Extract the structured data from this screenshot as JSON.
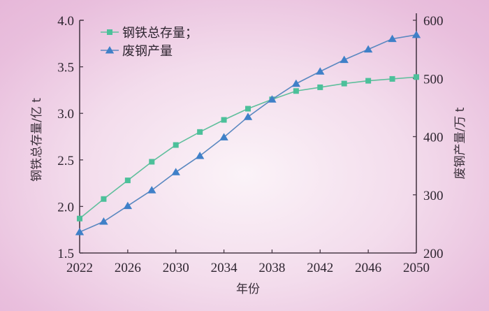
{
  "chart_data": {
    "type": "line",
    "title": "",
    "xlabel": "年份",
    "ylabel": "钢铁总存量/亿 t",
    "ylabel_right": "废钢产量/万 t",
    "x": [
      2022,
      2024,
      2026,
      2028,
      2030,
      2032,
      2034,
      2036,
      2038,
      2040,
      2042,
      2044,
      2046,
      2048,
      2050
    ],
    "xticks": [
      2022,
      2026,
      2030,
      2034,
      2038,
      2042,
      2046,
      2050
    ],
    "xlim": [
      2022,
      2050
    ],
    "ylim": [
      1.5,
      4.0
    ],
    "yticks": [
      "1.5",
      "2.0",
      "2.5",
      "3.0",
      "3.5",
      "4.0"
    ],
    "ylim_right": [
      200,
      600
    ],
    "yticks_right": [
      "200",
      "300",
      "400",
      "500",
      "600"
    ],
    "grid": false,
    "legend_position": "upper-left",
    "series": [
      {
        "name": "钢铁总存量；",
        "axis": "left",
        "marker": "square",
        "color": "#4dbf9a",
        "values": [
          1.87,
          2.08,
          2.28,
          2.48,
          2.66,
          2.8,
          2.93,
          3.05,
          3.15,
          3.24,
          3.28,
          3.32,
          3.35,
          3.37,
          3.39
        ]
      },
      {
        "name": "废钢产量",
        "axis": "right",
        "marker": "triangle",
        "color": "#4a86c8",
        "values": [
          236,
          254,
          281,
          308,
          339,
          367,
          399,
          434,
          464,
          491,
          512,
          532,
          550,
          568,
          575
        ]
      }
    ]
  },
  "colors": {
    "axis": "#4a3a48",
    "stock_line": "#5fbf9c",
    "stock_marker": "#4cc09a",
    "scrap_line": "#5a88c0",
    "scrap_marker": "#3f80c8"
  }
}
